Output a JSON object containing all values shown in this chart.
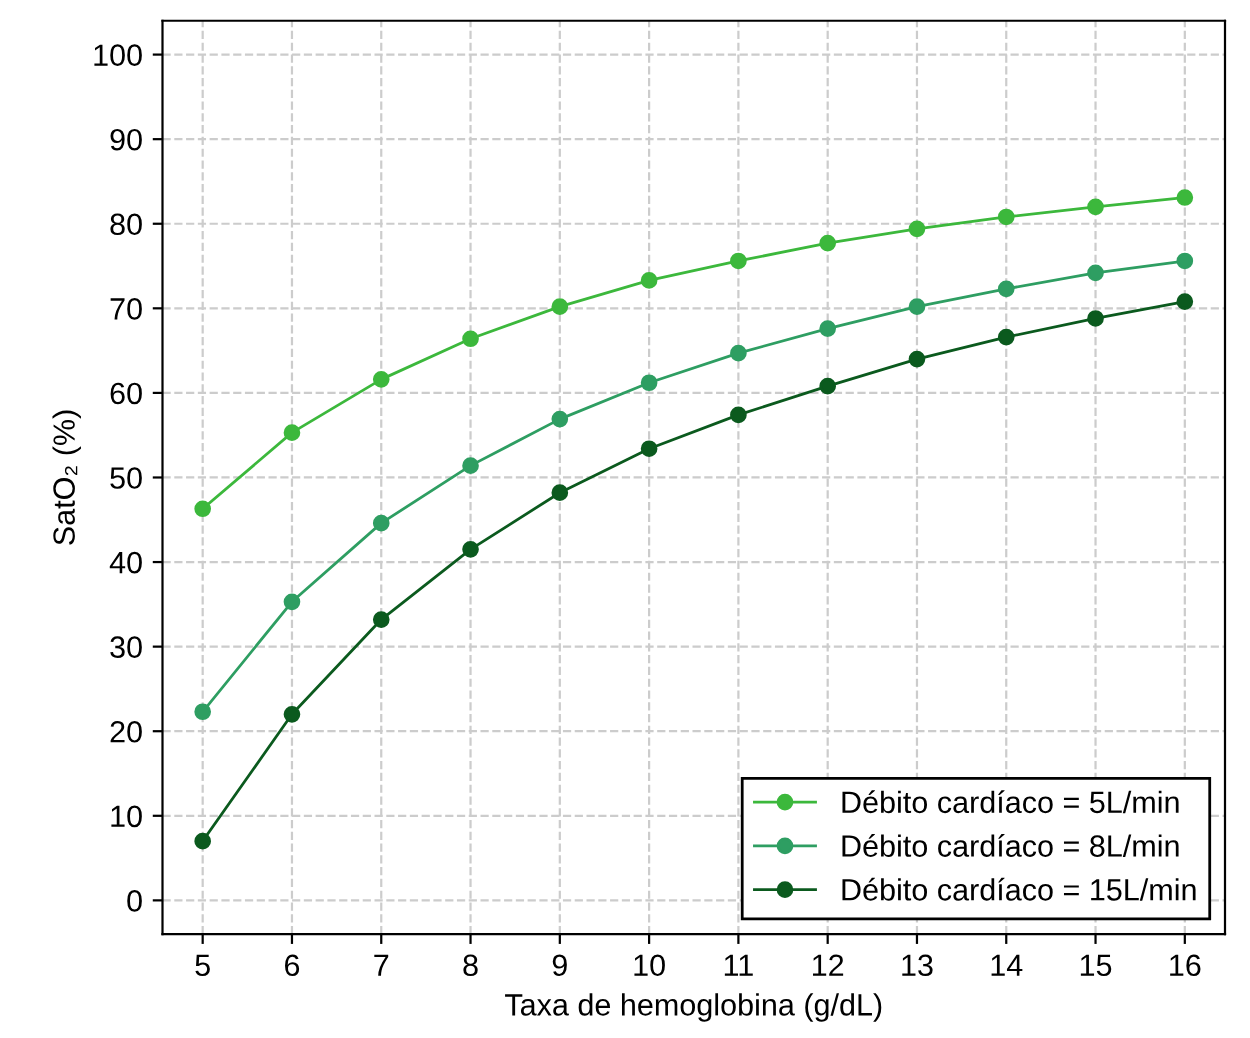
{
  "chart_data": {
    "type": "line",
    "xlabel": "Taxa de hemoglobina (g/dL)",
    "ylabel": "SatO₂ (%)",
    "x": [
      5,
      6,
      7,
      8,
      9,
      10,
      11,
      12,
      13,
      14,
      15,
      16
    ],
    "series": [
      {
        "name": "Débito cardíaco = 5L/min",
        "color": "#3cb83c",
        "values": [
          46.3,
          55.3,
          61.6,
          66.4,
          70.2,
          73.3,
          75.6,
          77.7,
          79.4,
          80.8,
          82.0,
          83.1
        ]
      },
      {
        "name": "Débito cardíaco = 8L/min",
        "color": "#2e9e62",
        "values": [
          22.3,
          35.3,
          44.6,
          51.4,
          56.9,
          61.2,
          64.7,
          67.6,
          70.2,
          72.3,
          74.2,
          75.6
        ]
      },
      {
        "name": "Débito cardíaco = 15L/min",
        "color": "#0b5a1e",
        "values": [
          7.0,
          22.0,
          33.2,
          41.5,
          48.2,
          53.4,
          57.4,
          60.8,
          64.0,
          66.6,
          68.8,
          70.8
        ]
      }
    ],
    "xlim": [
      4.55,
      16.45
    ],
    "xticks": [
      5,
      6,
      7,
      8,
      9,
      10,
      11,
      12,
      13,
      14,
      15,
      16
    ],
    "ylim": [
      -4,
      104
    ],
    "yticks": [
      0,
      10,
      20,
      30,
      40,
      50,
      60,
      70,
      80,
      90,
      100
    ],
    "grid": true,
    "legend": "bottom right",
    "marker": "circle",
    "line_style": "solid"
  }
}
